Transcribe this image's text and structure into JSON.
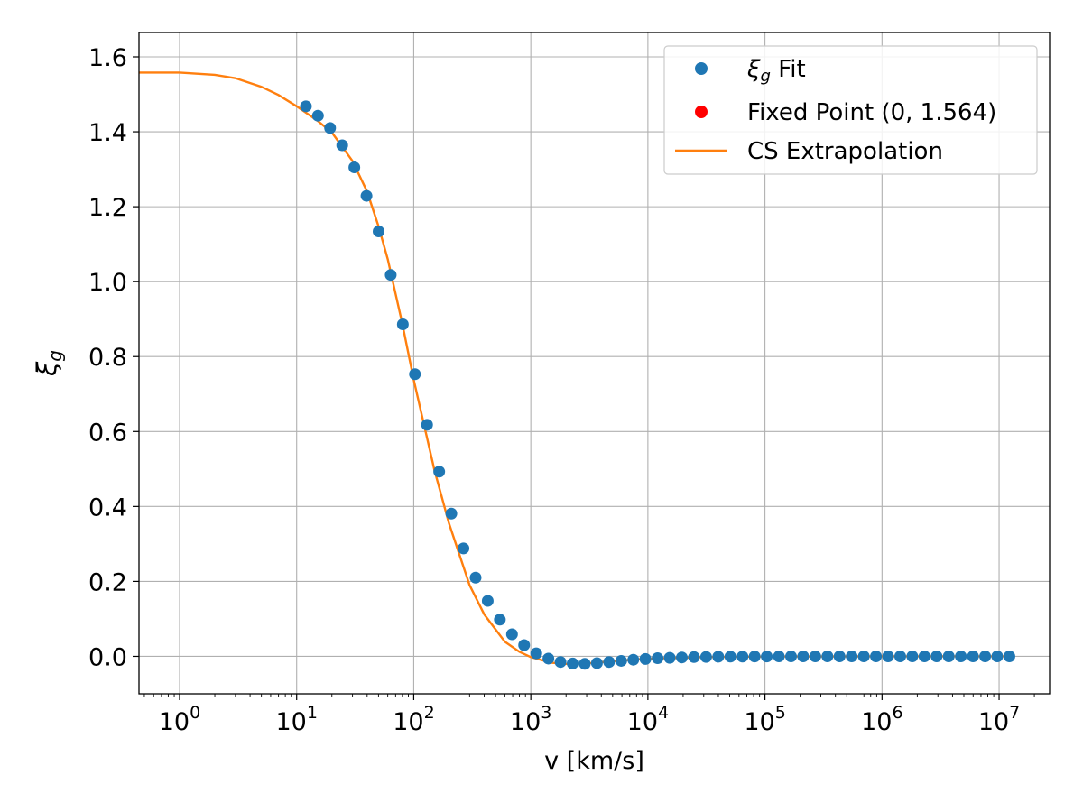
{
  "chart_data": {
    "type": "scatter",
    "title": "",
    "xlabel": "v [km/s]",
    "ylabel": "ξg",
    "ylabel_parts": {
      "base": "ξ",
      "sub": "g"
    },
    "xscale": "log",
    "xlim": [
      0.45,
      27000000
    ],
    "ylim": [
      -0.1,
      1.665
    ],
    "grid": true,
    "legend_position": "top-right",
    "x_ticks": [
      {
        "value": 1,
        "base": "10",
        "exp": "0"
      },
      {
        "value": 10,
        "base": "10",
        "exp": "1"
      },
      {
        "value": 100,
        "base": "10",
        "exp": "2"
      },
      {
        "value": 1000,
        "base": "10",
        "exp": "3"
      },
      {
        "value": 10000,
        "base": "10",
        "exp": "4"
      },
      {
        "value": 100000,
        "base": "10",
        "exp": "5"
      },
      {
        "value": 1000000,
        "base": "10",
        "exp": "6"
      },
      {
        "value": 10000000,
        "base": "10",
        "exp": "7"
      }
    ],
    "y_ticks": [
      {
        "value": 0.0,
        "label": "0.0"
      },
      {
        "value": 0.2,
        "label": "0.2"
      },
      {
        "value": 0.4,
        "label": "0.4"
      },
      {
        "value": 0.6,
        "label": "0.6"
      },
      {
        "value": 0.8,
        "label": "0.8"
      },
      {
        "value": 1.0,
        "label": "1.0"
      },
      {
        "value": 1.2,
        "label": "1.2"
      },
      {
        "value": 1.4,
        "label": "1.4"
      },
      {
        "value": 1.6,
        "label": "1.6"
      }
    ],
    "series": [
      {
        "name": "ξg Fit",
        "legend_base": "ξ",
        "legend_sub": "g",
        "legend_rest": " Fit",
        "kind": "scatter",
        "color": "#1f77b4",
        "x": [
          12.0,
          15.2,
          19.3,
          24.5,
          31.1,
          39.5,
          50.1,
          63.6,
          80.7,
          102.4,
          130.0,
          165.0,
          209.5,
          266.0,
          337.6,
          428.6,
          544.1,
          690.7,
          876.9,
          1113.1,
          1413.1,
          1794.0,
          2277.4,
          2891.1,
          3670.1,
          4659.2,
          5914.6,
          7508.5,
          9531.9,
          12100.6,
          15361.4,
          19500.9,
          24756.1,
          31427.3,
          39896.3,
          50647.6,
          64296.0,
          81622.3,
          103617.9,
          131540.6,
          166987.8,
          211987.2,
          269112.7,
          341632.0,
          433693.7,
          550563.0,
          698925.5,
          887271.0,
          1126369.0,
          1429900.0,
          1815200.0,
          2304400.0,
          2925400.0,
          3713700.0,
          4714500.0,
          5984900.0,
          7597700.0,
          9645100.0,
          12244000.0
        ],
        "y": [
          1.468,
          1.443,
          1.41,
          1.364,
          1.305,
          1.229,
          1.134,
          1.018,
          0.886,
          0.753,
          0.618,
          0.493,
          0.381,
          0.288,
          0.21,
          0.148,
          0.098,
          0.059,
          0.03,
          0.008,
          -0.006,
          -0.015,
          -0.019,
          -0.02,
          -0.018,
          -0.015,
          -0.012,
          -0.009,
          -0.007,
          -0.005,
          -0.004,
          -0.003,
          -0.002,
          -0.0015,
          -0.001,
          -0.0008,
          -0.0006,
          -0.0004,
          -0.0003,
          -0.0002,
          -0.0002,
          -0.0001,
          -0.0001,
          0,
          0,
          0,
          0,
          0,
          0,
          0,
          0,
          0,
          0,
          0,
          0,
          0,
          0,
          0,
          0
        ]
      },
      {
        "name": "Fixed Point (0, 1.564)",
        "kind": "scatter",
        "color": "#ff0000",
        "x": [
          0
        ],
        "y": [
          1.564
        ]
      },
      {
        "name": "CS Extrapolation",
        "kind": "line",
        "color": "#ff7f0e",
        "x": [
          0.45,
          1,
          2,
          3,
          5,
          7,
          10,
          15,
          20,
          30,
          40,
          50,
          60,
          80,
          100,
          150,
          200,
          300,
          400,
          600,
          800,
          1000,
          1500,
          2000,
          3000,
          5000,
          10000,
          30000,
          100000,
          1000000,
          12244000
        ],
        "y": [
          1.558,
          1.558,
          1.552,
          1.543,
          1.52,
          1.498,
          1.468,
          1.43,
          1.398,
          1.322,
          1.24,
          1.148,
          1.06,
          0.887,
          0.738,
          0.498,
          0.355,
          0.19,
          0.112,
          0.039,
          0.012,
          -0.002,
          -0.017,
          -0.02,
          -0.019,
          -0.013,
          -0.006,
          -0.002,
          -0.0005,
          0,
          0
        ]
      }
    ]
  }
}
